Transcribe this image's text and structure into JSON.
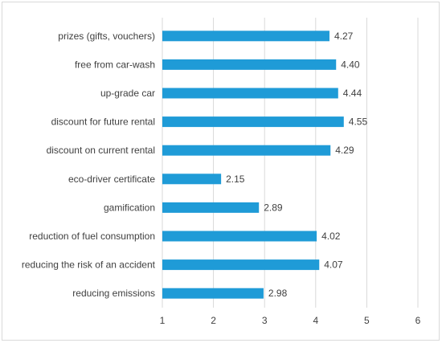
{
  "chart_data": {
    "type": "bar",
    "orientation": "horizontal",
    "title": "",
    "xlabel": "",
    "ylabel": "",
    "categories": [
      "prizes (gifts, vouchers)",
      "free from car-wash",
      "up-grade car",
      "discount for future rental",
      "discount on current rental",
      "eco-driver certificate",
      "gamification",
      "reduction of fuel consumption",
      "reducing the risk of an accident",
      "reducing emissions"
    ],
    "values": [
      4.27,
      4.4,
      4.44,
      4.55,
      4.29,
      2.15,
      2.89,
      4.02,
      4.07,
      2.98
    ],
    "value_labels": [
      "4.27",
      "4.40",
      "4.44",
      "4.55",
      "4.29",
      "2.15",
      "2.89",
      "4.02",
      "4.07",
      "2.98"
    ],
    "xlim": [
      1,
      6
    ],
    "xticks": [
      "1",
      "2",
      "3",
      "4",
      "5",
      "6"
    ],
    "grid": "vertical",
    "bar_color": "#1f9bd7",
    "grid_color": "#d9d9d9",
    "text_color": "#404040"
  }
}
